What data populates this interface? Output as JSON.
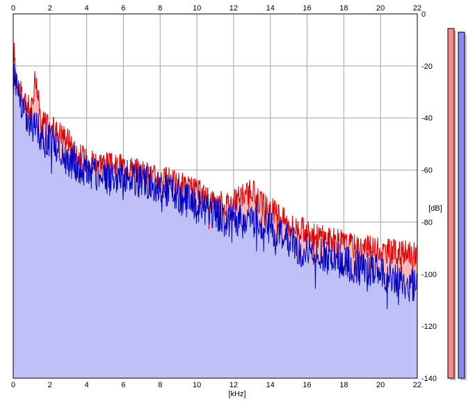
{
  "chart_data": {
    "type": "area",
    "xlabel": "[kHz]",
    "ylabel": "[dB]",
    "xlim": [
      0,
      22
    ],
    "ylim": [
      -140,
      0
    ],
    "xticks": [
      0,
      2,
      4,
      6,
      8,
      10,
      12,
      14,
      16,
      18,
      20,
      22
    ],
    "yticks": [
      0,
      -20,
      -40,
      -60,
      -80,
      -100,
      -120,
      -140
    ],
    "xtick_labels": [
      "0",
      "2",
      "4",
      "6",
      "8",
      "10",
      "12",
      "14",
      "16",
      "18",
      "20",
      "22"
    ],
    "ytick_labels": [
      "0",
      "-20",
      "-40",
      "-60",
      "-80",
      "-100",
      "-120",
      "-140"
    ],
    "grid": true,
    "series": [
      {
        "color": "#e00000",
        "fill": "#f7b8b8",
        "x": [
          0.0,
          0.05,
          0.2,
          0.5,
          1.0,
          1.2,
          1.5,
          2.0,
          2.5,
          3.0,
          3.5,
          4.0,
          4.5,
          5.0,
          5.5,
          6.0,
          6.5,
          7.0,
          7.5,
          8.0,
          8.5,
          9.0,
          9.5,
          10.0,
          10.5,
          11.0,
          11.5,
          12.0,
          12.5,
          13.0,
          13.5,
          14.0,
          14.5,
          15.0,
          15.5,
          16.0,
          16.5,
          17.0,
          17.5,
          18.0,
          18.5,
          19.0,
          19.5,
          20.0,
          20.5,
          21.0,
          21.5,
          22.0
        ],
        "values": [
          -22,
          -15,
          -25,
          -33,
          -37,
          -23,
          -40,
          -44,
          -45,
          -48,
          -54,
          -56,
          -56,
          -57,
          -59,
          -58,
          -59,
          -61,
          -62,
          -63,
          -64,
          -65,
          -67,
          -68,
          -70,
          -72,
          -73,
          -72,
          -70,
          -68,
          -73,
          -75,
          -77,
          -81,
          -82,
          -84,
          -85,
          -86,
          -87,
          -88,
          -89,
          -90,
          -90,
          -91,
          -91,
          -92,
          -92,
          -92
        ]
      },
      {
        "color": "#0000c0",
        "fill": "#c0c0f8",
        "x": [
          0.0,
          0.05,
          0.2,
          0.5,
          1.0,
          1.5,
          2.0,
          2.5,
          3.0,
          3.5,
          4.0,
          4.5,
          5.0,
          5.5,
          6.0,
          6.5,
          7.0,
          7.5,
          8.0,
          8.5,
          9.0,
          9.5,
          10.0,
          10.5,
          11.0,
          11.5,
          12.0,
          12.5,
          13.0,
          13.5,
          14.0,
          14.5,
          15.0,
          15.5,
          16.0,
          16.5,
          17.0,
          17.5,
          18.0,
          18.5,
          19.0,
          19.5,
          20.0,
          20.5,
          21.0,
          21.5,
          22.0
        ],
        "values": [
          -25,
          -20,
          -30,
          -38,
          -42,
          -46,
          -48,
          -52,
          -56,
          -58,
          -60,
          -62,
          -63,
          -64,
          -62,
          -63,
          -64,
          -65,
          -66,
          -68,
          -70,
          -72,
          -74,
          -75,
          -77,
          -79,
          -80,
          -80,
          -79,
          -80,
          -82,
          -84,
          -88,
          -90,
          -91,
          -92,
          -93,
          -94,
          -96,
          -97,
          -98,
          -98,
          -100,
          -101,
          -102,
          -104,
          -106
        ]
      }
    ]
  },
  "meters": [
    {
      "name": "left-channel",
      "color": "#f88888",
      "shadow": "#c8c8c8",
      "level": 0.96
    },
    {
      "name": "right-channel",
      "color": "#8888ee",
      "shadow": "#c8c8c8",
      "level": 0.95
    }
  ]
}
